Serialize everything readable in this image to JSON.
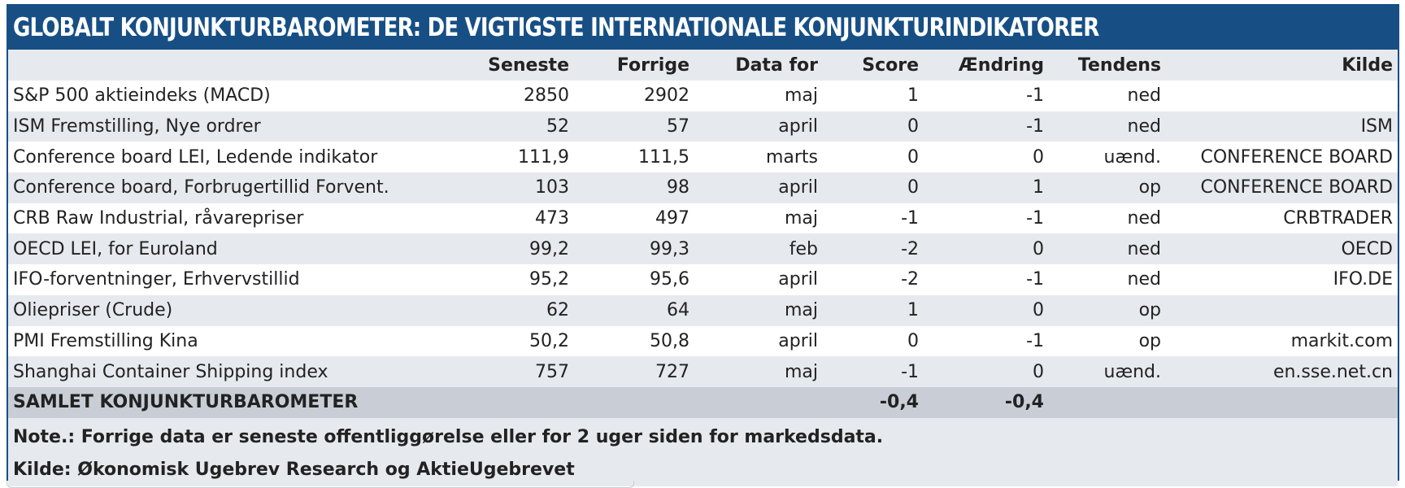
{
  "title": "GLOBALT KONJUNKTURBAROMETER: DE VIGTIGSTE INTERNATIONALE KONJUNKTURINDIKATORER",
  "columns": {
    "label": "",
    "latest": "Seneste",
    "previous": "Forrige",
    "period": "Data for",
    "score": "Score",
    "change": "Ændring",
    "trend": "Tendens",
    "source": "Kilde"
  },
  "rows": [
    {
      "label": "S&P 500 aktieindeks (MACD)",
      "latest": "2850",
      "previous": "2902",
      "period": "maj",
      "score": "1",
      "change": "-1",
      "trend": "ned",
      "source": ""
    },
    {
      "label": "ISM Fremstilling, Nye ordrer",
      "latest": "52",
      "previous": "57",
      "period": "april",
      "score": "0",
      "change": "-1",
      "trend": "ned",
      "source": "ISM"
    },
    {
      "label": "Conference board LEI, Ledende indikator",
      "latest": "111,9",
      "previous": "111,5",
      "period": "marts",
      "score": "0",
      "change": "0",
      "trend": "uænd.",
      "source": "CONFERENCE BOARD"
    },
    {
      "label": "Conference board, Forbrugertillid Forvent.",
      "latest": "103",
      "previous": "98",
      "period": "april",
      "score": "0",
      "change": "1",
      "trend": "op",
      "source": "CONFERENCE BOARD"
    },
    {
      "label": "CRB Raw Industrial, råvarepriser",
      "latest": "473",
      "previous": "497",
      "period": "maj",
      "score": "-1",
      "change": "-1",
      "trend": "ned",
      "source": "CRBTRADER"
    },
    {
      "label": "OECD LEI, for Euroland",
      "latest": "99,2",
      "previous": "99,3",
      "period": "feb",
      "score": "-2",
      "change": "0",
      "trend": "ned",
      "source": "OECD"
    },
    {
      "label": "IFO-forventninger, Erhvervstillid",
      "latest": "95,2",
      "previous": "95,6",
      "period": "april",
      "score": "-2",
      "change": "-1",
      "trend": "ned",
      "source": "IFO.DE"
    },
    {
      "label": "Oliepriser (Crude)",
      "latest": "62",
      "previous": "64",
      "period": "maj",
      "score": "1",
      "change": "0",
      "trend": "op",
      "source": ""
    },
    {
      "label": "PMI Fremstilling Kina",
      "latest": "50,2",
      "previous": "50,8",
      "period": "april",
      "score": "0",
      "change": "-1",
      "trend": "op",
      "source": "markit.com"
    },
    {
      "label": "Shanghai  Container Shipping index",
      "latest": "757",
      "previous": "727",
      "period": "maj",
      "score": "-1",
      "change": "0",
      "trend": "uænd.",
      "source": "en.sse.net.cn"
    }
  ],
  "total": {
    "label": "SAMLET KONJUNKTURBAROMETER",
    "score": "-0,4",
    "change": "-0,4"
  },
  "note": "Note.: Forrige data er seneste offentliggørelse eller for 2 uger siden for markedsdata.",
  "source_note": "Kilde: Økonomisk Ugebrev Research og AktieUgebrevet",
  "colors": {
    "title_bg": "#174f85",
    "row_alt": "#e6e9ee",
    "row_white": "#ffffff",
    "total_bg": "#c9ced6"
  }
}
